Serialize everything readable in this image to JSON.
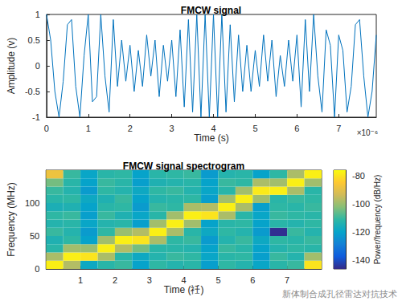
{
  "chart_data": [
    {
      "type": "line",
      "title": "FMCW signal",
      "x_label": "Time (s)",
      "y_label": "Amplitude (v)",
      "x_multiplier": "×10⁻⁶",
      "color": "#0072bd",
      "grid": false,
      "xlim": [
        0,
        7.9
      ],
      "xticks": [
        0,
        1,
        2,
        3,
        4,
        5,
        6,
        7
      ],
      "ylim": [
        -1,
        1
      ],
      "yticks": [
        -1,
        -0.5,
        0,
        0.5,
        1
      ],
      "x": [
        0,
        0.1,
        0.2,
        0.3,
        0.4,
        0.5,
        0.6,
        0.7,
        0.8,
        0.9,
        1.0,
        1.1,
        1.2,
        1.3,
        1.4,
        1.5,
        1.6,
        1.7,
        1.8,
        1.9,
        2.0,
        2.1,
        2.2,
        2.3,
        2.4,
        2.5,
        2.6,
        2.7,
        2.8,
        2.9,
        3.0,
        3.1,
        3.2,
        3.3,
        3.4,
        3.5,
        3.6,
        3.7,
        3.8,
        3.9,
        4.0,
        4.1,
        4.2,
        4.3,
        4.4,
        4.5,
        4.6,
        4.7,
        4.8,
        4.9,
        5.0,
        5.1,
        5.2,
        5.3,
        5.4,
        5.5,
        5.6,
        5.7,
        5.8,
        5.9,
        6.0,
        6.1,
        6.2,
        6.3,
        6.4,
        6.5,
        6.6,
        6.7,
        6.8,
        6.9,
        7.0,
        7.1,
        7.2,
        7.3,
        7.4,
        7.5,
        7.6,
        7.7,
        7.8,
        7.9
      ],
      "values": [
        1,
        0.5,
        -0.5,
        -1,
        -0.3,
        0.8,
        0.9,
        -0.4,
        -1,
        0.2,
        1,
        -0.7,
        -0.6,
        1,
        -0.2,
        -0.9,
        0.9,
        -0.4,
        0.5,
        -0.3,
        0.4,
        -0.5,
        0.3,
        -0.4,
        0.6,
        -0.2,
        0.5,
        -0.6,
        0.4,
        -0.3,
        0.5,
        -0.6,
        0.7,
        -0.8,
        0.9,
        -0.9,
        1,
        -1,
        1,
        -1,
        1,
        -1,
        1,
        -0.9,
        0.8,
        -0.7,
        0.6,
        -0.5,
        0.4,
        -0.5,
        0.3,
        -0.4,
        0.6,
        -0.3,
        0.5,
        -0.6,
        0.2,
        -0.4,
        0.5,
        -0.3,
        0.6,
        -0.8,
        0.9,
        -0.5,
        1,
        -0.2,
        -0.9,
        0.7,
        0.4,
        -1,
        0.6,
        0.3,
        -0.9,
        -0.4,
        0.8,
        0.9,
        -0.2,
        -1,
        -0.5,
        0.6
      ]
    },
    {
      "type": "heatmap",
      "title": "FMCW signal spectrogram",
      "x_label": "Time (祍)",
      "y_label": "Frequency (MHz)",
      "grid": false,
      "watermark": "新体制合成孔径雷达对抗技术",
      "xlim": [
        0,
        8
      ],
      "xticks": [
        1,
        2,
        3,
        4,
        5,
        6,
        7
      ],
      "ylim": [
        0,
        150
      ],
      "yticks": [
        0,
        50,
        100
      ],
      "colorbar_label": "Power/frequency (dB/Hz)",
      "colorbar_lim": [
        -146,
        -76
      ],
      "colorbar_ticks": [
        -140,
        -120,
        -100,
        -80
      ],
      "time": [
        0.25,
        0.75,
        1.25,
        1.75,
        2.25,
        2.75,
        3.25,
        3.75,
        4.25,
        4.75,
        5.25,
        5.75,
        6.25,
        6.75,
        7.25,
        7.75
      ],
      "frequency": [
        6.25,
        18.75,
        31.25,
        43.75,
        56.25,
        68.75,
        81.25,
        93.75,
        106.25,
        118.75,
        131.25,
        143.75
      ],
      "cells": [
        [
          -78,
          -98,
          -112,
          -114,
          -110,
          -113,
          -111,
          -115,
          -112,
          -110,
          -104,
          -88
        ],
        [
          -97,
          -78,
          -99,
          -111,
          -113,
          -112,
          -110,
          -114,
          -111,
          -113,
          -112,
          -110
        ],
        [
          -118,
          -80,
          -100,
          -120,
          -122,
          -119,
          -121,
          -120,
          -118,
          -122,
          -120,
          -119
        ],
        [
          -112,
          -98,
          -78,
          -99,
          -111,
          -113,
          -110,
          -112,
          -114,
          -111,
          -110,
          -112
        ],
        [
          -110,
          -112,
          -97,
          -78,
          -100,
          -112,
          -114,
          -111,
          -110,
          -113,
          -112,
          -111
        ],
        [
          -120,
          -118,
          -104,
          -80,
          -97,
          -121,
          -119,
          -122,
          -120,
          -118,
          -121,
          -120
        ],
        [
          -111,
          -113,
          -112,
          -98,
          -78,
          -99,
          -112,
          -110,
          -113,
          -111,
          -114,
          -112
        ],
        [
          -113,
          -110,
          -112,
          -111,
          -98,
          -78,
          -99,
          -111,
          -112,
          -110,
          -113,
          -111
        ],
        [
          -112,
          -111,
          -113,
          -110,
          -112,
          -99,
          -78,
          -98,
          -111,
          -113,
          -112,
          -110
        ],
        [
          -121,
          -119,
          -120,
          -122,
          -118,
          -120,
          -80,
          -97,
          -121,
          -119,
          -120,
          -122
        ],
        [
          -111,
          -112,
          -110,
          -113,
          -111,
          -112,
          -98,
          -78,
          -99,
          -112,
          -110,
          -113
        ],
        [
          -113,
          -111,
          -112,
          -110,
          -113,
          -111,
          -112,
          -98,
          -78,
          -99,
          -111,
          -112
        ],
        [
          -119,
          -121,
          -120,
          -118,
          -122,
          -120,
          -119,
          -121,
          -99,
          -79,
          -98,
          -120
        ],
        [
          -112,
          -110,
          -113,
          -111,
          -145,
          -112,
          -110,
          -111,
          -112,
          -78,
          -99,
          -111
        ],
        [
          -110,
          -113,
          -111,
          -112,
          -110,
          -113,
          -111,
          -112,
          -110,
          -98,
          -78,
          -98
        ],
        [
          -80,
          -99,
          -112,
          -110,
          -113,
          -111,
          -112,
          -110,
          -111,
          -112,
          -99,
          -78
        ]
      ]
    }
  ]
}
